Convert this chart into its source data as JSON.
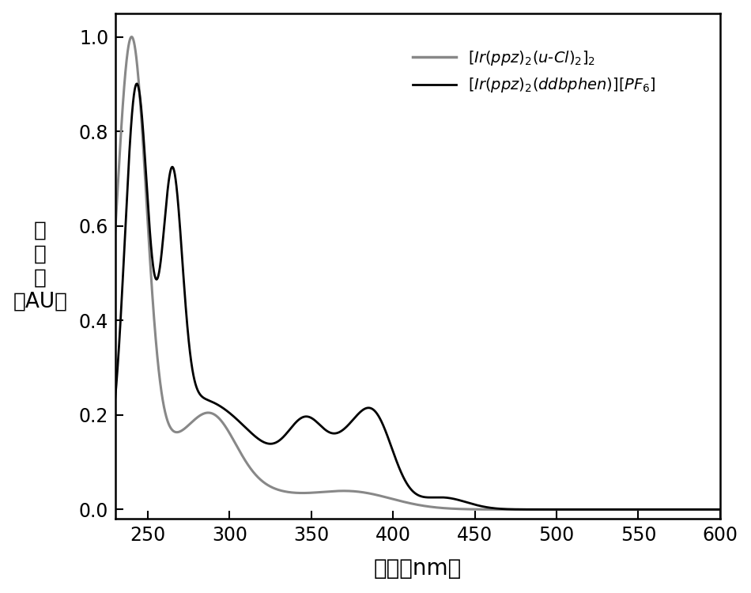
{
  "xlim": [
    230,
    600
  ],
  "ylim": [
    -0.02,
    1.05
  ],
  "xticks": [
    250,
    300,
    350,
    400,
    450,
    500,
    550,
    600
  ],
  "yticks": [
    0.0,
    0.2,
    0.4,
    0.6,
    0.8,
    1.0
  ],
  "xlabel": "波长（nm）",
  "line1_color": "#888888",
  "line2_color": "#000000",
  "background_color": "#ffffff",
  "linewidth1": 2.2,
  "linewidth2": 2.0,
  "label_fontsize": 20,
  "tick_fontsize": 17,
  "legend_fontsize": 14
}
